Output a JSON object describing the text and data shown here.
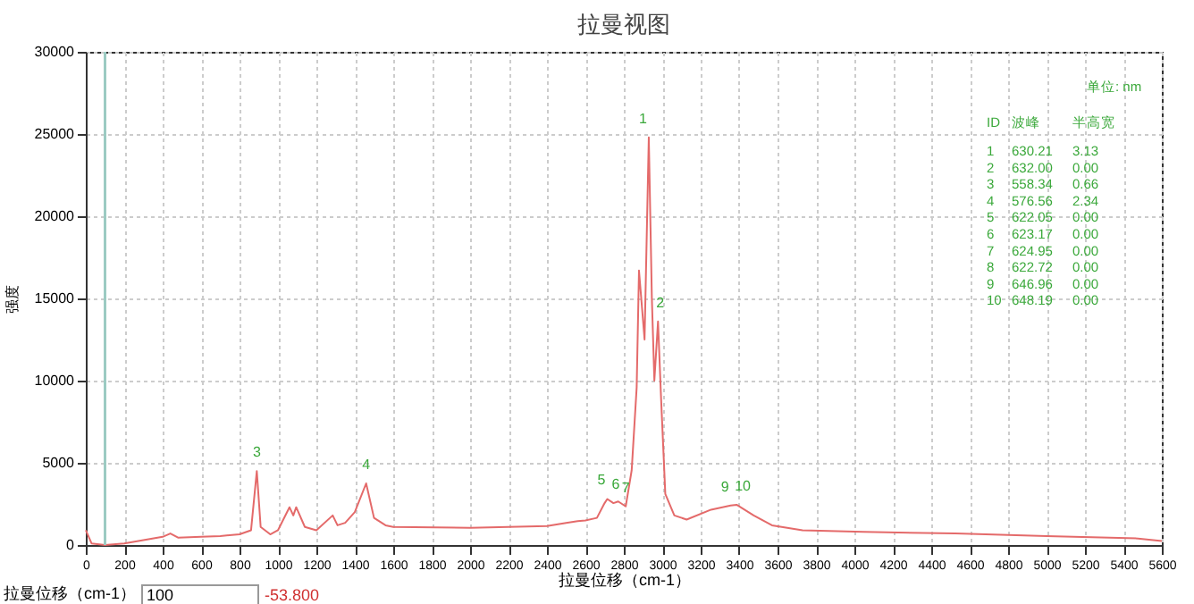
{
  "chart_data": {
    "type": "line",
    "title": "拉曼视图",
    "xlabel": "拉曼位移（cm-1）",
    "ylabel": "强度",
    "x": [
      0,
      30,
      100,
      200,
      300,
      400,
      440,
      480,
      600,
      700,
      800,
      860,
      890,
      910,
      960,
      1000,
      1060,
      1080,
      1095,
      1140,
      1200,
      1285,
      1310,
      1350,
      1400,
      1459,
      1500,
      1560,
      1600,
      2000,
      2400,
      2500,
      2560,
      2600,
      2660,
      2700,
      2714,
      2746,
      2771,
      2810,
      2841,
      2867,
      2879,
      2908,
      2930,
      2946,
      2959,
      2978,
      2994,
      3016,
      3063,
      3127,
      3254,
      3356,
      3387,
      3476,
      3571,
      3730,
      4048,
      4524,
      5000,
      5476,
      5600
    ],
    "series": [
      {
        "color": "#e46a6a",
        "values": [
          900,
          100,
          0,
          100,
          300,
          500,
          700,
          450,
          500,
          550,
          650,
          900,
          4500,
          1100,
          650,
          900,
          2300,
          1800,
          2300,
          1100,
          900,
          1800,
          1200,
          1350,
          2000,
          3750,
          1650,
          1200,
          1100,
          1050,
          1150,
          1350,
          1450,
          1500,
          1650,
          2550,
          2800,
          2550,
          2650,
          2350,
          4550,
          9600,
          16700,
          12500,
          24800,
          15000,
          10000,
          13600,
          8900,
          3100,
          1800,
          1550,
          2150,
          2400,
          2450,
          1800,
          1200,
          900,
          800,
          700,
          550,
          400,
          250
        ]
      }
    ],
    "xlim": [
      0,
      5600
    ],
    "xticks": [
      0,
      200,
      400,
      600,
      800,
      1000,
      1200,
      1400,
      1600,
      1800,
      2000,
      2200,
      2400,
      2600,
      2800,
      3000,
      3200,
      3400,
      3600,
      3800,
      4000,
      4200,
      4400,
      4600,
      4800,
      5000,
      5200,
      5400,
      5600
    ],
    "ylim": [
      0,
      30000
    ],
    "yticks": [
      0,
      5000,
      10000,
      15000,
      20000,
      25000,
      30000
    ],
    "grid": true,
    "ref_lines": [
      {
        "axis": "x",
        "value": 100,
        "color": "#9ccbc2"
      }
    ],
    "annotations": [
      "单位: nm",
      "ID 波峰 半高宽",
      "1 630.21 3.13",
      "2 632.00 0.00",
      "3 558.34 0.66",
      "4 576.56 2.34",
      "5 622.05 0.00",
      "6 623.17 0.00",
      "7 624.95 0.00",
      "8 622.72 0.00",
      "9 646.96 0.00",
      "10 648.19 0.00",
      {
        "text": "1",
        "x": 2930,
        "y": 24800
      },
      {
        "text": "2",
        "x": 2978,
        "y": 13600
      },
      {
        "text": "3",
        "x": 890,
        "y": 4500
      },
      {
        "text": "4",
        "x": 1459,
        "y": 3750
      },
      {
        "text": "5",
        "x": 2714,
        "y": 2800
      },
      {
        "text": "6",
        "x": 2746,
        "y": 2550
      },
      {
        "text": "7",
        "x": 2810,
        "y": 2350
      },
      {
        "text": "9",
        "x": 3356,
        "y": 2400
      },
      {
        "text": "10",
        "x": 3387,
        "y": 2450
      },
      "拉曼位移（cm-1）",
      "100",
      "-53.800"
    ]
  }
}
